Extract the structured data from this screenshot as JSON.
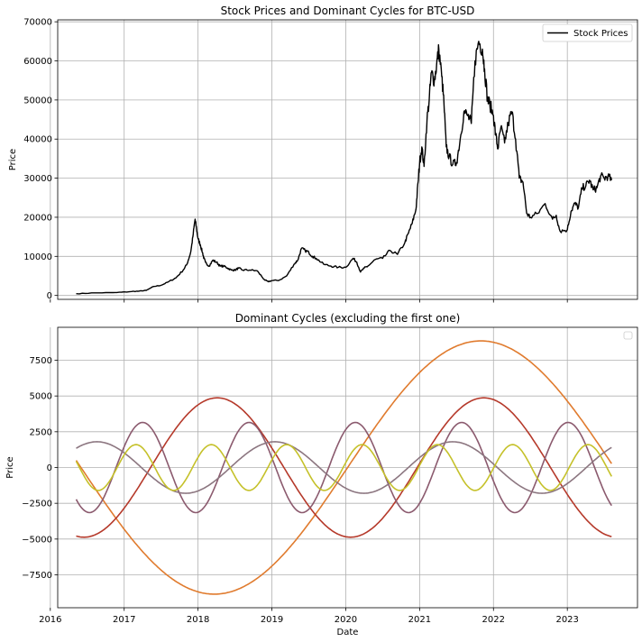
{
  "chart_data": [
    {
      "type": "line",
      "title": "Stock Prices and Dominant Cycles for BTC-USD",
      "xlabel": "",
      "ylabel": "Price",
      "xlim": [
        2016.1,
        2023.95
      ],
      "ylim": [
        -1000,
        70500
      ],
      "grid": true,
      "legend_position": "top-right",
      "yticks": [
        0,
        10000,
        20000,
        30000,
        40000,
        50000,
        60000,
        70000
      ],
      "ytick_labels": [
        "0",
        "10000",
        "20000",
        "30000",
        "40000",
        "50000",
        "60000",
        "70000"
      ],
      "series": [
        {
          "name": "Stock Prices",
          "color": "#000000",
          "x": [
            2016.35,
            2016.6,
            2016.9,
            2017.1,
            2017.2,
            2017.3,
            2017.4,
            2017.5,
            2017.6,
            2017.7,
            2017.8,
            2017.85,
            2017.9,
            2017.93,
            2017.96,
            2017.98,
            2018.0,
            2018.03,
            2018.06,
            2018.08,
            2018.1,
            2018.15,
            2018.2,
            2018.25,
            2018.3,
            2018.35,
            2018.4,
            2018.45,
            2018.5,
            2018.55,
            2018.6,
            2018.7,
            2018.8,
            2018.9,
            2018.95,
            2019.0,
            2019.1,
            2019.2,
            2019.3,
            2019.35,
            2019.4,
            2019.45,
            2019.5,
            2019.55,
            2019.6,
            2019.7,
            2019.8,
            2019.9,
            2020.0,
            2020.1,
            2020.15,
            2020.2,
            2020.25,
            2020.3,
            2020.4,
            2020.5,
            2020.6,
            2020.7,
            2020.8,
            2020.85,
            2020.9,
            2020.95,
            2020.98,
            2021.0,
            2021.03,
            2021.06,
            2021.1,
            2021.13,
            2021.16,
            2021.2,
            2021.23,
            2021.26,
            2021.3,
            2021.33,
            2021.36,
            2021.4,
            2021.45,
            2021.5,
            2021.55,
            2021.6,
            2021.65,
            2021.7,
            2021.75,
            2021.8,
            2021.85,
            2021.88,
            2021.92,
            2021.95,
            2022.0,
            2022.03,
            2022.06,
            2022.1,
            2022.15,
            2022.2,
            2022.25,
            2022.3,
            2022.35,
            2022.4,
            2022.45,
            2022.5,
            2022.6,
            2022.7,
            2022.8,
            2022.85,
            2022.9,
            2023.0,
            2023.05,
            2023.1,
            2023.15,
            2023.2,
            2023.25,
            2023.3,
            2023.35,
            2023.4,
            2023.45,
            2023.5,
            2023.55,
            2023.6
          ],
          "values": [
            450,
            650,
            750,
            1000,
            1100,
            1300,
            2300,
            2600,
            3500,
            4500,
            6500,
            8000,
            11000,
            15000,
            19500,
            17000,
            14500,
            13000,
            11000,
            9500,
            8500,
            7500,
            9000,
            8500,
            7500,
            7500,
            7000,
            6500,
            6500,
            7000,
            6500,
            6500,
            6300,
            4000,
            3500,
            3800,
            3900,
            5000,
            8000,
            9000,
            12000,
            11500,
            11000,
            10000,
            9500,
            8000,
            7500,
            7200,
            7200,
            9500,
            8500,
            6000,
            7000,
            7500,
            9200,
            9500,
            11500,
            10500,
            13500,
            16000,
            18500,
            22000,
            29000,
            34000,
            38000,
            33000,
            45000,
            50000,
            57000,
            55000,
            59000,
            63000,
            56000,
            49000,
            38000,
            35500,
            33500,
            34000,
            40000,
            47000,
            46000,
            44000,
            60000,
            65000,
            63000,
            58000,
            50000,
            49000,
            46000,
            41000,
            37500,
            43000,
            39000,
            44000,
            47000,
            40000,
            30000,
            29000,
            21000,
            20000,
            21000,
            23500,
            19500,
            20500,
            16500,
            16800,
            21500,
            23500,
            22500,
            27500,
            28000,
            29500,
            27000,
            27500,
            30500,
            30000,
            30500,
            29500
          ]
        }
      ]
    },
    {
      "type": "line",
      "title": "Dominant Cycles (excluding the first one)",
      "xlabel": "Date",
      "ylabel": "Price",
      "xlim": [
        2016.1,
        2023.95
      ],
      "ylim": [
        -9800,
        9800
      ],
      "grid": true,
      "legend_position": "top-right",
      "xticks": [
        2016,
        2017,
        2018,
        2019,
        2020,
        2021,
        2022,
        2023
      ],
      "xtick_labels": [
        "2016",
        "2017",
        "2018",
        "2019",
        "2020",
        "2021",
        "2022",
        "2023"
      ],
      "yticks": [
        -7500,
        -5000,
        -2500,
        0,
        2500,
        5000,
        7500
      ],
      "ytick_labels": [
        "−7500",
        "−5000",
        "−2500",
        "0",
        "2500",
        "5000",
        "7500"
      ],
      "series": [
        {
          "color": "#e07b2e",
          "amplitude": 8850,
          "period_years": 7.22,
          "peak_at": 2021.83,
          "x_range": [
            2016.35,
            2023.6
          ]
        },
        {
          "color": "#b5392a",
          "amplitude": 4870,
          "period_years": 3.61,
          "peak_at": 2021.87,
          "x_range": [
            2016.35,
            2023.6
          ]
        },
        {
          "color": "#8b5a6e",
          "amplitude": 3150,
          "period_years": 1.44,
          "peak_at": 2021.57,
          "x_range": [
            2016.35,
            2023.6
          ]
        },
        {
          "color": "#8c7680",
          "amplitude": 1800,
          "period_years": 2.41,
          "peak_at": 2021.45,
          "x_range": [
            2016.35,
            2023.6
          ]
        },
        {
          "color": "#c5c12a",
          "amplitude": 1600,
          "period_years": 1.02,
          "peak_at": 2021.24,
          "x_range": [
            2016.35,
            2023.6
          ]
        }
      ]
    }
  ]
}
